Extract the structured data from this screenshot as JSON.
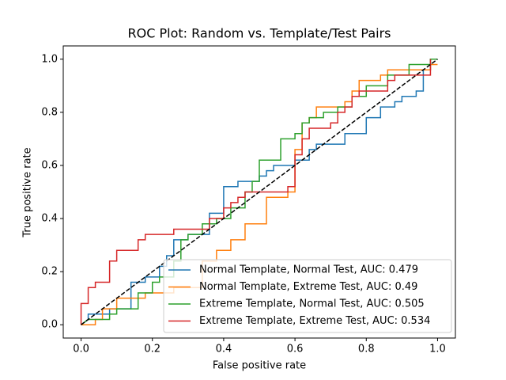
{
  "chart_data": {
    "type": "line",
    "title": "ROC Plot: Random vs. Template/Test Pairs",
    "x_label": "False positive rate",
    "y_label": "True positive rate",
    "xlim": [
      -0.05,
      1.05
    ],
    "ylim": [
      -0.05,
      1.05
    ],
    "xticks": [
      {
        "value": 0,
        "label": "0.0"
      },
      0.2,
      0.4,
      0.6,
      0.8,
      {
        "value": 1,
        "label": "1.0"
      }
    ],
    "yticks": [
      {
        "value": 0,
        "label": "0.0"
      },
      0.2,
      0.4,
      0.6,
      0.8,
      {
        "value": 1,
        "label": "1.0"
      }
    ],
    "legend": "lower right",
    "series": [
      {
        "name": "Normal Template, Normal Test, AUC: 0.479",
        "color": "#1f77b4",
        "x": [
          0,
          0.02,
          0.02,
          0.08,
          0.08,
          0.14,
          0.14,
          0.18,
          0.18,
          0.22,
          0.22,
          0.24,
          0.24,
          0.26,
          0.26,
          0.3,
          0.3,
          0.36,
          0.36,
          0.4,
          0.4,
          0.44,
          0.44,
          0.5,
          0.5,
          0.52,
          0.52,
          0.54,
          0.54,
          0.6,
          0.6,
          0.64,
          0.64,
          0.66,
          0.66,
          0.74,
          0.74,
          0.8,
          0.8,
          0.84,
          0.84,
          0.88,
          0.88,
          0.9,
          0.9,
          0.94,
          0.94,
          0.96,
          0.96,
          0.98,
          0.98,
          1.0
        ],
        "y": [
          0,
          0.02,
          0.04,
          0.04,
          0.06,
          0.06,
          0.16,
          0.16,
          0.18,
          0.18,
          0.22,
          0.22,
          0.26,
          0.26,
          0.32,
          0.32,
          0.34,
          0.34,
          0.42,
          0.42,
          0.52,
          0.52,
          0.54,
          0.54,
          0.56,
          0.56,
          0.58,
          0.58,
          0.6,
          0.6,
          0.62,
          0.62,
          0.66,
          0.66,
          0.68,
          0.68,
          0.72,
          0.72,
          0.78,
          0.78,
          0.82,
          0.82,
          0.84,
          0.84,
          0.86,
          0.86,
          0.88,
          0.88,
          0.96,
          0.96,
          1.0,
          1.0
        ]
      },
      {
        "name": "Normal Template, Extreme Test, AUC: 0.49",
        "color": "#ff7f0e",
        "x": [
          0,
          0.04,
          0.04,
          0.06,
          0.06,
          0.1,
          0.1,
          0.18,
          0.18,
          0.26,
          0.26,
          0.34,
          0.34,
          0.38,
          0.38,
          0.42,
          0.42,
          0.46,
          0.46,
          0.52,
          0.52,
          0.58,
          0.58,
          0.6,
          0.6,
          0.62,
          0.62,
          0.64,
          0.64,
          0.66,
          0.66,
          0.74,
          0.74,
          0.76,
          0.76,
          0.78,
          0.78,
          0.84,
          0.84,
          0.86,
          0.86,
          0.98,
          0.98,
          1.0
        ],
        "y": [
          0,
          0,
          0.02,
          0.02,
          0.06,
          0.06,
          0.1,
          0.1,
          0.12,
          0.12,
          0.14,
          0.14,
          0.24,
          0.24,
          0.28,
          0.28,
          0.32,
          0.32,
          0.38,
          0.38,
          0.48,
          0.48,
          0.5,
          0.5,
          0.66,
          0.66,
          0.76,
          0.76,
          0.78,
          0.78,
          0.82,
          0.82,
          0.84,
          0.84,
          0.88,
          0.88,
          0.92,
          0.92,
          0.94,
          0.94,
          0.96,
          0.96,
          0.98,
          0.98
        ]
      },
      {
        "name": "Extreme Template, Normal Test, AUC: 0.505",
        "color": "#2ca02c",
        "x": [
          0,
          0.02,
          0.08,
          0.08,
          0.1,
          0.1,
          0.16,
          0.16,
          0.2,
          0.2,
          0.22,
          0.22,
          0.26,
          0.26,
          0.28,
          0.28,
          0.3,
          0.3,
          0.34,
          0.34,
          0.38,
          0.38,
          0.42,
          0.42,
          0.46,
          0.46,
          0.48,
          0.48,
          0.5,
          0.5,
          0.56,
          0.56,
          0.6,
          0.6,
          0.62,
          0.62,
          0.64,
          0.64,
          0.68,
          0.68,
          0.72,
          0.72,
          0.76,
          0.76,
          0.8,
          0.8,
          0.86,
          0.86,
          0.92,
          0.92,
          0.98,
          0.98,
          1.0
        ],
        "y": [
          0,
          0.02,
          0.02,
          0.04,
          0.04,
          0.06,
          0.06,
          0.12,
          0.12,
          0.16,
          0.16,
          0.18,
          0.18,
          0.24,
          0.24,
          0.32,
          0.32,
          0.34,
          0.34,
          0.38,
          0.38,
          0.4,
          0.4,
          0.44,
          0.44,
          0.5,
          0.5,
          0.54,
          0.54,
          0.62,
          0.62,
          0.7,
          0.7,
          0.72,
          0.72,
          0.76,
          0.76,
          0.78,
          0.78,
          0.8,
          0.8,
          0.82,
          0.82,
          0.86,
          0.86,
          0.9,
          0.9,
          0.94,
          0.94,
          0.98,
          0.98,
          1.0,
          1.0
        ]
      },
      {
        "name": "Extreme Template, Extreme Test, AUC: 0.534",
        "color": "#d62728",
        "x": [
          0,
          0,
          0.02,
          0.02,
          0.04,
          0.04,
          0.08,
          0.08,
          0.1,
          0.1,
          0.16,
          0.16,
          0.18,
          0.18,
          0.26,
          0.26,
          0.36,
          0.36,
          0.4,
          0.4,
          0.42,
          0.42,
          0.44,
          0.44,
          0.46,
          0.46,
          0.58,
          0.58,
          0.6,
          0.6,
          0.62,
          0.62,
          0.64,
          0.64,
          0.7,
          0.7,
          0.72,
          0.72,
          0.74,
          0.74,
          0.76,
          0.76,
          0.78,
          0.78,
          0.86,
          0.86,
          0.88,
          0.88,
          0.98,
          0.98
        ],
        "y": [
          0,
          0.08,
          0.08,
          0.14,
          0.14,
          0.16,
          0.16,
          0.24,
          0.24,
          0.28,
          0.28,
          0.32,
          0.32,
          0.34,
          0.34,
          0.36,
          0.36,
          0.4,
          0.4,
          0.44,
          0.44,
          0.46,
          0.46,
          0.48,
          0.48,
          0.5,
          0.5,
          0.52,
          0.52,
          0.64,
          0.64,
          0.7,
          0.7,
          0.74,
          0.74,
          0.76,
          0.76,
          0.8,
          0.8,
          0.82,
          0.82,
          0.86,
          0.86,
          0.88,
          0.88,
          0.92,
          0.92,
          0.94,
          0.94,
          1.0
        ]
      }
    ],
    "reference_line": {
      "x": [
        0,
        1
      ],
      "y": [
        0,
        1
      ],
      "color": "#000000",
      "style": "dashed"
    }
  }
}
